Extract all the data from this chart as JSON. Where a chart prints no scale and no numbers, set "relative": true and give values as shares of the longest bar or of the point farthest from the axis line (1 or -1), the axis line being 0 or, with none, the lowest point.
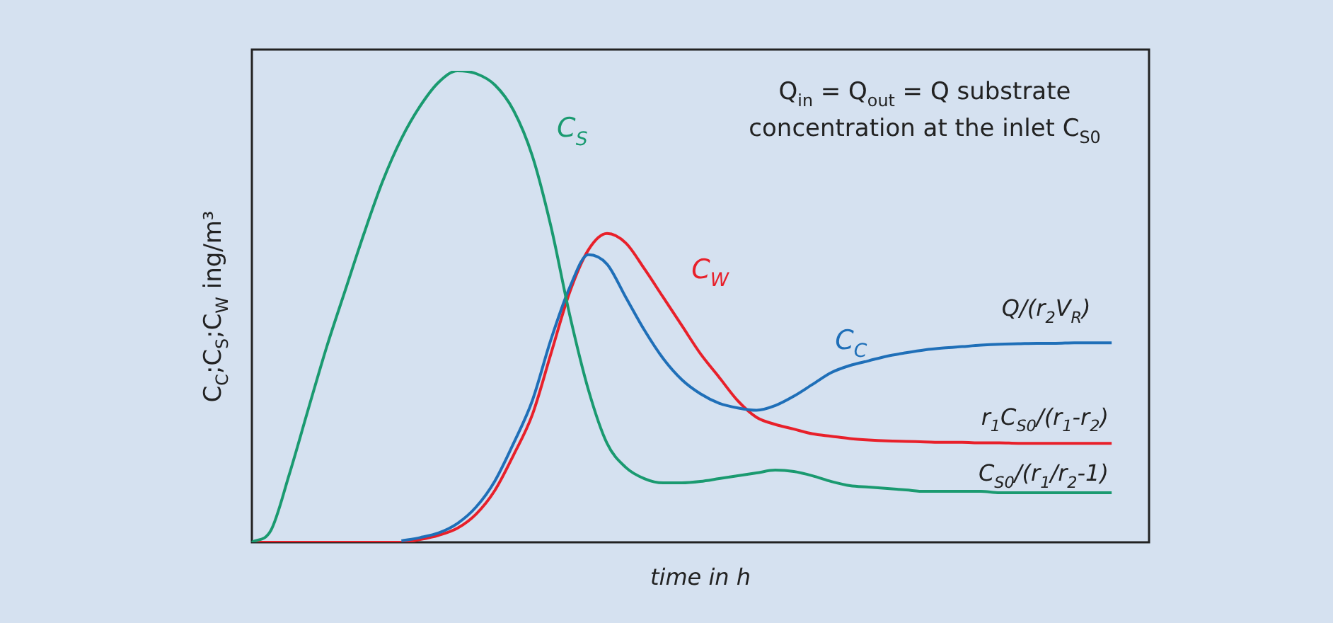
{
  "chart_data": {
    "type": "line",
    "relative": true,
    "xlabel": "time in h",
    "ylabel": "C$_{C}$;C$_{S}$;C$_{W}$ ing/m³",
    "categories": [
      null,
      null,
      null,
      null,
      null,
      null,
      null,
      null,
      null,
      null,
      null,
      null,
      null,
      null,
      null,
      null,
      null,
      null,
      null,
      null,
      null,
      null,
      null,
      null,
      null,
      null,
      null,
      null,
      null,
      null,
      null,
      null,
      null,
      null,
      null,
      null,
      null,
      null,
      null,
      null,
      null,
      null,
      null,
      null,
      null,
      null,
      null,
      null,
      null
    ],
    "series": [
      {
        "name": "C$_{S}$",
        "color": "#1a9a70",
        "values": [
          0,
          0.024,
          0.144,
          0.28,
          0.414,
          0.535,
          0.655,
          0.766,
          0.856,
          0.925,
          0.976,
          1,
          0.994,
          0.97,
          0.916,
          0.82,
          0.67,
          0.483,
          0.324,
          0.21,
          0.159,
          0.135,
          0.126,
          0.126,
          0.129,
          0.135,
          0.141,
          0.147,
          0.153,
          0.15,
          0.141,
          0.129,
          0.12,
          0.117,
          0.114,
          0.111,
          0.108,
          0.108,
          0.108,
          0.108,
          0.105,
          0.105,
          0.105,
          0.105,
          0.105,
          0.105,
          0.105,
          null,
          null
        ]
      },
      {
        "name": "C$_{C}$",
        "color": "#1f6fb8",
        "values": [
          null,
          null,
          null,
          null,
          null,
          null,
          null,
          null,
          0.003,
          0.01,
          0.02,
          0.04,
          0.075,
          0.13,
          0.21,
          0.3,
          0.43,
          0.54,
          0.61,
          0.59,
          0.52,
          0.45,
          0.39,
          0.345,
          0.315,
          0.295,
          0.285,
          0.28,
          0.29,
          0.31,
          0.335,
          0.36,
          0.375,
          0.385,
          0.395,
          0.402,
          0.408,
          0.412,
          0.415,
          0.418,
          0.42,
          0.421,
          0.422,
          0.422,
          0.423,
          0.423,
          0.423,
          null,
          null
        ]
      },
      {
        "name": "C$_{W}$",
        "color": "#e8202a",
        "values": [
          0,
          0,
          0,
          0,
          0,
          0,
          0,
          0,
          0,
          0.006,
          0.015,
          0.03,
          0.06,
          0.11,
          0.185,
          0.27,
          0.4,
          0.53,
          0.62,
          0.655,
          0.635,
          0.58,
          0.52,
          0.46,
          0.4,
          0.35,
          0.3,
          0.265,
          0.25,
          0.24,
          0.23,
          0.225,
          0.22,
          0.217,
          0.215,
          0.214,
          0.213,
          0.212,
          0.212,
          0.211,
          0.211,
          0.21,
          0.21,
          0.21,
          0.21,
          0.21,
          0.21,
          null,
          null
        ]
      }
    ],
    "annotations": [
      "Q$_{in}$ = Q$_{out}$ = Q substrate\nconcentration at the inlet C$_{S0}$",
      "Q/(r$_{2}$V$_{R}$)",
      "r$_{1}$C$_{S0}$/(r$_{1}$-r$_{2}$)",
      "C$_{S0}$/(r$_{1}$/r$_{2}$-1)"
    ],
    "legend": false,
    "marker": "none",
    "line_style": "solid"
  }
}
